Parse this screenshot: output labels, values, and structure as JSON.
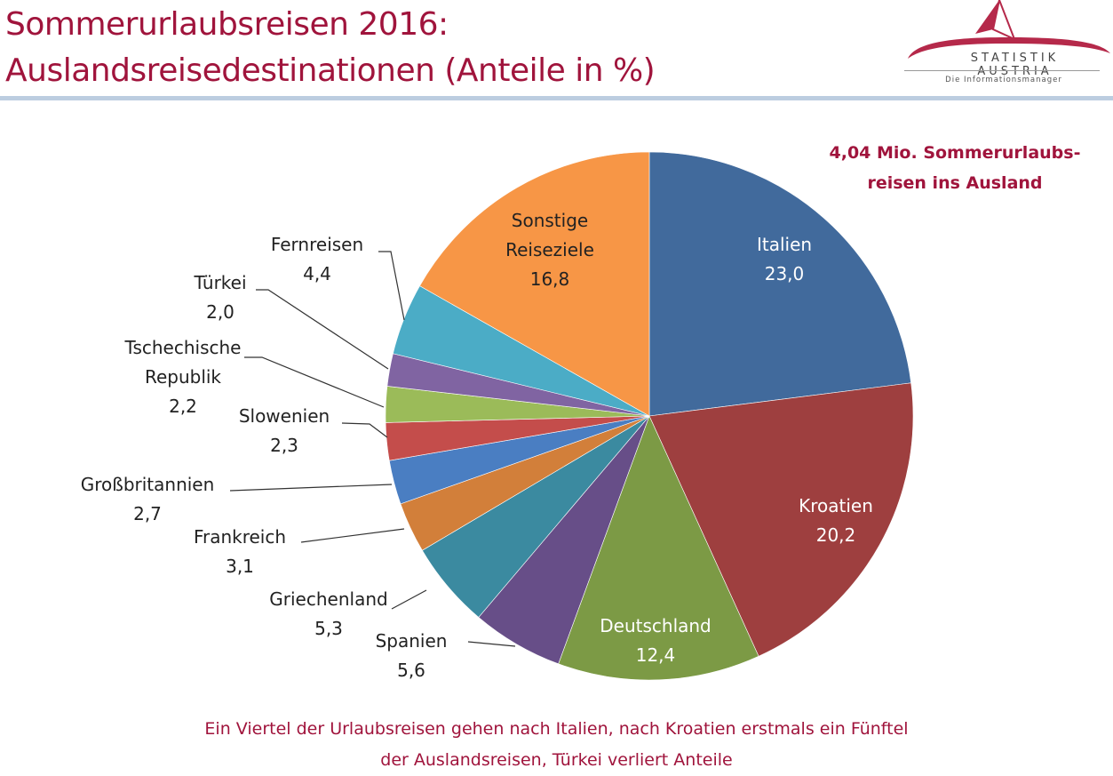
{
  "header": {
    "title_line1": "Sommerurlaubsreisen 2016:",
    "title_line2": "Auslandsreisedestinationen (Anteile in %)",
    "logo_name": "STATISTIK AUSTRIA",
    "logo_tagline": "Die Informationsmanager",
    "accent_color": "#a0143c",
    "divider_color": "#bccde0"
  },
  "summary": {
    "line1": "4,04 Mio. Sommerurlaubs-",
    "line2": "reisen ins Ausland"
  },
  "footer": {
    "line1": "Ein Viertel der Urlaubsreisen gehen nach Italien, nach Kroatien erstmals ein Fünftel",
    "line2": "der Auslandsreisen, Türkei verliert Anteile"
  },
  "chart_data": {
    "type": "pie",
    "title": "Sommerurlaubsreisen 2016: Auslandsreisedestinationen (Anteile in %)",
    "unit": "%",
    "start": "12 o'clock",
    "direction": "clockwise",
    "slices": [
      {
        "label": "Italien",
        "value": 23.0,
        "display": "23,0",
        "color": "#416a9c",
        "label_position": "inside",
        "text_color": "#ffffff"
      },
      {
        "label": "Kroatien",
        "value": 20.2,
        "display": "20,2",
        "color": "#9e3f3f",
        "label_position": "inside",
        "text_color": "#ffffff"
      },
      {
        "label": "Deutschland",
        "value": 12.4,
        "display": "12,4",
        "color": "#7c9a45",
        "label_position": "inside",
        "text_color": "#ffffff"
      },
      {
        "label": "Spanien",
        "value": 5.6,
        "display": "5,6",
        "color": "#674e88",
        "label_position": "outside",
        "text_color": "#222222"
      },
      {
        "label": "Griechenland",
        "value": 5.3,
        "display": "5,3",
        "color": "#3b8aa0",
        "label_position": "outside",
        "text_color": "#222222"
      },
      {
        "label": "Frankreich",
        "value": 3.1,
        "display": "3,1",
        "color": "#d27f3a",
        "label_position": "outside",
        "text_color": "#222222"
      },
      {
        "label": "Großbritannien",
        "value": 2.7,
        "display": "2,7",
        "color": "#4a7ec2",
        "label_position": "outside",
        "text_color": "#222222"
      },
      {
        "label": "Slowenien",
        "value": 2.3,
        "display": "2,3",
        "color": "#c44d4b",
        "label_position": "outside",
        "text_color": "#222222"
      },
      {
        "label": "Tschechische Republik",
        "value": 2.2,
        "display": "2,2",
        "color": "#9bbb59",
        "label_position": "outside",
        "text_color": "#222222"
      },
      {
        "label": "Türkei",
        "value": 2.0,
        "display": "2,0",
        "color": "#8064a2",
        "label_position": "outside",
        "text_color": "#222222"
      },
      {
        "label": "Fernreisen",
        "value": 4.4,
        "display": "4,4",
        "color": "#4bacc6",
        "label_position": "outside",
        "text_color": "#222222"
      },
      {
        "label": "Sonstige Reiseziele",
        "value": 16.8,
        "display": "16,8",
        "color": "#f79646",
        "label_position": "inside",
        "text_color": "#222222"
      }
    ]
  }
}
